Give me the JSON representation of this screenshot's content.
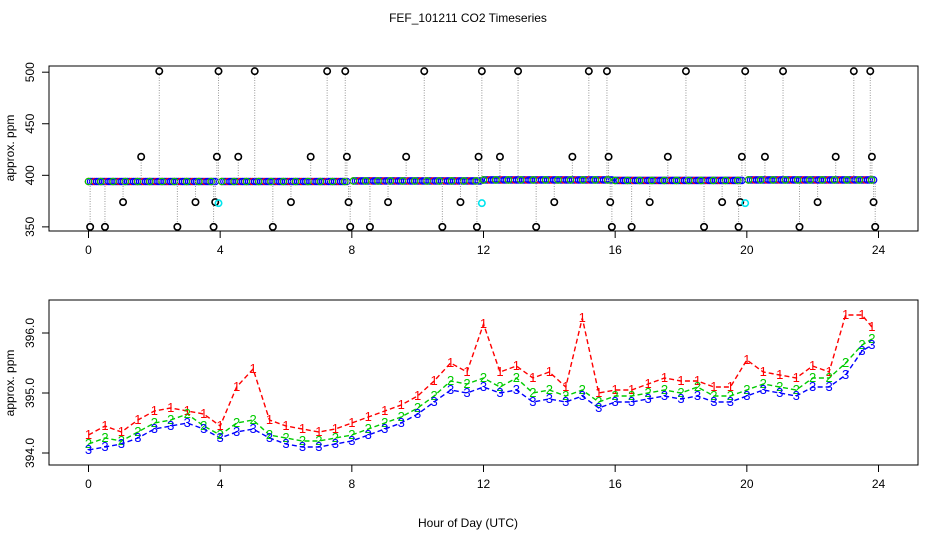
{
  "figure_title": "FEF_101211  CO2 Timeseries",
  "shared_xlabel": "Hour of Day (UTC)",
  "chart_data": [
    {
      "type": "scatter",
      "panel": "top",
      "ylabel": "approx. ppm",
      "xlim": [
        -1.2,
        25.2
      ],
      "ylim": [
        346,
        506
      ],
      "x_ticks": [
        0,
        4,
        8,
        12,
        16,
        20,
        24
      ],
      "y_ticks": [
        350,
        400,
        450,
        500
      ],
      "baseline_series": [
        {
          "name": "1",
          "color": "#ff0000"
        },
        {
          "name": "2",
          "color": "#00cc00"
        },
        {
          "name": "3",
          "color": "#0000ff"
        }
      ],
      "baseline_segments": [
        {
          "x0": 0.0,
          "x1": 3.85,
          "y": 394
        },
        {
          "x0": 4.05,
          "x1": 7.85,
          "y": 394
        },
        {
          "x0": 8.05,
          "x1": 11.9,
          "y": 394.5
        },
        {
          "x0": 12.0,
          "x1": 15.9,
          "y": 395.5
        },
        {
          "x0": 16.0,
          "x1": 19.85,
          "y": 395
        },
        {
          "x0": 20.05,
          "x1": 23.85,
          "y": 395.5
        }
      ],
      "cyan_points": [
        {
          "x": 3.95,
          "y": 373
        },
        {
          "x": 11.95,
          "y": 373
        },
        {
          "x": 19.95,
          "y": 373
        }
      ],
      "open_circles": [
        {
          "x": 0.05,
          "y": 350
        },
        {
          "x": 0.5,
          "y": 350
        },
        {
          "x": 1.05,
          "y": 374
        },
        {
          "x": 1.6,
          "y": 418
        },
        {
          "x": 2.15,
          "y": 501
        },
        {
          "x": 2.7,
          "y": 350
        },
        {
          "x": 3.25,
          "y": 374
        },
        {
          "x": 3.8,
          "y": 350
        },
        {
          "x": 3.85,
          "y": 374
        },
        {
          "x": 3.9,
          "y": 418
        },
        {
          "x": 3.95,
          "y": 501
        },
        {
          "x": 4.55,
          "y": 418
        },
        {
          "x": 5.05,
          "y": 501
        },
        {
          "x": 5.6,
          "y": 350
        },
        {
          "x": 6.15,
          "y": 374
        },
        {
          "x": 6.75,
          "y": 418
        },
        {
          "x": 7.25,
          "y": 501
        },
        {
          "x": 7.8,
          "y": 501
        },
        {
          "x": 7.85,
          "y": 418
        },
        {
          "x": 7.9,
          "y": 374
        },
        {
          "x": 7.95,
          "y": 350
        },
        {
          "x": 8.55,
          "y": 350
        },
        {
          "x": 9.1,
          "y": 374
        },
        {
          "x": 9.65,
          "y": 418
        },
        {
          "x": 10.2,
          "y": 501
        },
        {
          "x": 10.75,
          "y": 350
        },
        {
          "x": 11.3,
          "y": 374
        },
        {
          "x": 11.8,
          "y": 350
        },
        {
          "x": 11.85,
          "y": 418
        },
        {
          "x": 11.95,
          "y": 501
        },
        {
          "x": 12.5,
          "y": 418
        },
        {
          "x": 13.05,
          "y": 501
        },
        {
          "x": 13.6,
          "y": 350
        },
        {
          "x": 14.15,
          "y": 374
        },
        {
          "x": 14.7,
          "y": 418
        },
        {
          "x": 15.2,
          "y": 501
        },
        {
          "x": 15.75,
          "y": 501
        },
        {
          "x": 15.8,
          "y": 418
        },
        {
          "x": 15.85,
          "y": 374
        },
        {
          "x": 15.9,
          "y": 350
        },
        {
          "x": 16.5,
          "y": 350
        },
        {
          "x": 17.05,
          "y": 374
        },
        {
          "x": 17.6,
          "y": 418
        },
        {
          "x": 18.15,
          "y": 501
        },
        {
          "x": 18.7,
          "y": 350
        },
        {
          "x": 19.25,
          "y": 374
        },
        {
          "x": 19.75,
          "y": 350
        },
        {
          "x": 19.8,
          "y": 374
        },
        {
          "x": 19.85,
          "y": 418
        },
        {
          "x": 19.95,
          "y": 501
        },
        {
          "x": 20.55,
          "y": 418
        },
        {
          "x": 21.1,
          "y": 501
        },
        {
          "x": 21.6,
          "y": 350
        },
        {
          "x": 22.15,
          "y": 374
        },
        {
          "x": 22.7,
          "y": 418
        },
        {
          "x": 23.25,
          "y": 501
        },
        {
          "x": 23.75,
          "y": 501
        },
        {
          "x": 23.8,
          "y": 418
        },
        {
          "x": 23.85,
          "y": 374
        },
        {
          "x": 23.9,
          "y": 350
        }
      ]
    },
    {
      "type": "line",
      "panel": "bottom",
      "ylabel": "approx. ppm",
      "xlim": [
        -1.2,
        25.2
      ],
      "ylim": [
        393.8,
        396.55
      ],
      "x_ticks": [
        0,
        4,
        8,
        12,
        16,
        20,
        24
      ],
      "y_ticks": [
        394.0,
        395.0,
        396.0
      ],
      "y_tick_labels": [
        "394.0",
        "395.0",
        "396.0"
      ],
      "x": [
        0,
        0.5,
        1,
        1.5,
        2,
        2.5,
        3,
        3.5,
        4,
        4.5,
        5,
        5.5,
        6,
        6.5,
        7,
        7.5,
        8,
        8.5,
        9,
        9.5,
        10,
        10.5,
        11,
        11.5,
        12,
        12.5,
        13,
        13.5,
        14,
        14.5,
        15,
        15.5,
        16,
        16.5,
        17,
        17.5,
        18,
        18.5,
        19,
        19.5,
        20,
        20.5,
        21,
        21.5,
        22,
        22.5,
        23,
        23.5,
        23.8
      ],
      "series": [
        {
          "name": "1",
          "color": "#ff0000",
          "values": [
            394.3,
            394.45,
            394.35,
            394.55,
            394.7,
            394.75,
            394.7,
            394.65,
            394.45,
            395.1,
            395.4,
            394.55,
            394.45,
            394.4,
            394.35,
            394.4,
            394.5,
            394.6,
            394.7,
            394.8,
            394.95,
            395.2,
            395.5,
            395.35,
            396.15,
            395.35,
            395.45,
            395.25,
            395.35,
            395.1,
            396.25,
            395.0,
            395.05,
            395.05,
            395.15,
            395.25,
            395.2,
            395.2,
            395.1,
            395.1,
            395.55,
            395.35,
            395.3,
            395.25,
            395.45,
            395.35,
            396.3,
            396.3,
            396.1
          ]
        },
        {
          "name": "2",
          "color": "#00cc00",
          "values": [
            394.15,
            394.25,
            394.2,
            394.35,
            394.5,
            394.55,
            394.65,
            394.45,
            394.3,
            394.5,
            394.55,
            394.3,
            394.25,
            394.2,
            394.2,
            394.25,
            394.3,
            394.4,
            394.5,
            394.6,
            394.75,
            394.95,
            395.2,
            395.15,
            395.25,
            395.1,
            395.25,
            395.0,
            395.05,
            394.95,
            395.05,
            394.85,
            394.95,
            394.95,
            395.0,
            395.05,
            395.0,
            395.1,
            394.95,
            394.95,
            395.05,
            395.15,
            395.1,
            395.05,
            395.25,
            395.25,
            395.5,
            395.8,
            395.9
          ]
        },
        {
          "name": "3",
          "color": "#0000ff",
          "values": [
            394.05,
            394.1,
            394.15,
            394.25,
            394.4,
            394.45,
            394.5,
            394.4,
            394.25,
            394.35,
            394.4,
            394.25,
            394.15,
            394.1,
            394.1,
            394.15,
            394.2,
            394.3,
            394.4,
            394.5,
            394.65,
            394.85,
            395.05,
            395.0,
            395.1,
            395.0,
            395.05,
            394.85,
            394.9,
            394.85,
            394.95,
            394.75,
            394.85,
            394.85,
            394.9,
            394.95,
            394.9,
            394.95,
            394.85,
            394.85,
            394.95,
            395.05,
            395.0,
            394.95,
            395.1,
            395.1,
            395.3,
            395.7,
            395.8
          ]
        }
      ]
    }
  ]
}
